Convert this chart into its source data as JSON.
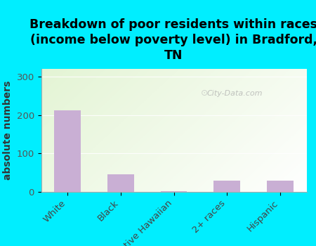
{
  "categories": [
    "White",
    "Black",
    "Native Hawaiian",
    "2+ races",
    "Hispanic"
  ],
  "values": [
    213,
    45,
    2,
    30,
    30
  ],
  "bar_color": "#c9afd4",
  "title": "Breakdown of poor residents within races\n(income below poverty level) in Bradford,\nTN",
  "ylabel": "absolute numbers",
  "ylim": [
    0,
    320
  ],
  "yticks": [
    0,
    100,
    200,
    300
  ],
  "bg_color": "#00eeff",
  "gradient_top_left": "#d6edbc",
  "gradient_bottom_right": "#f5f5f5",
  "watermark": "City-Data.com",
  "title_fontsize": 12.5,
  "ylabel_fontsize": 10,
  "tick_fontsize": 9.5
}
